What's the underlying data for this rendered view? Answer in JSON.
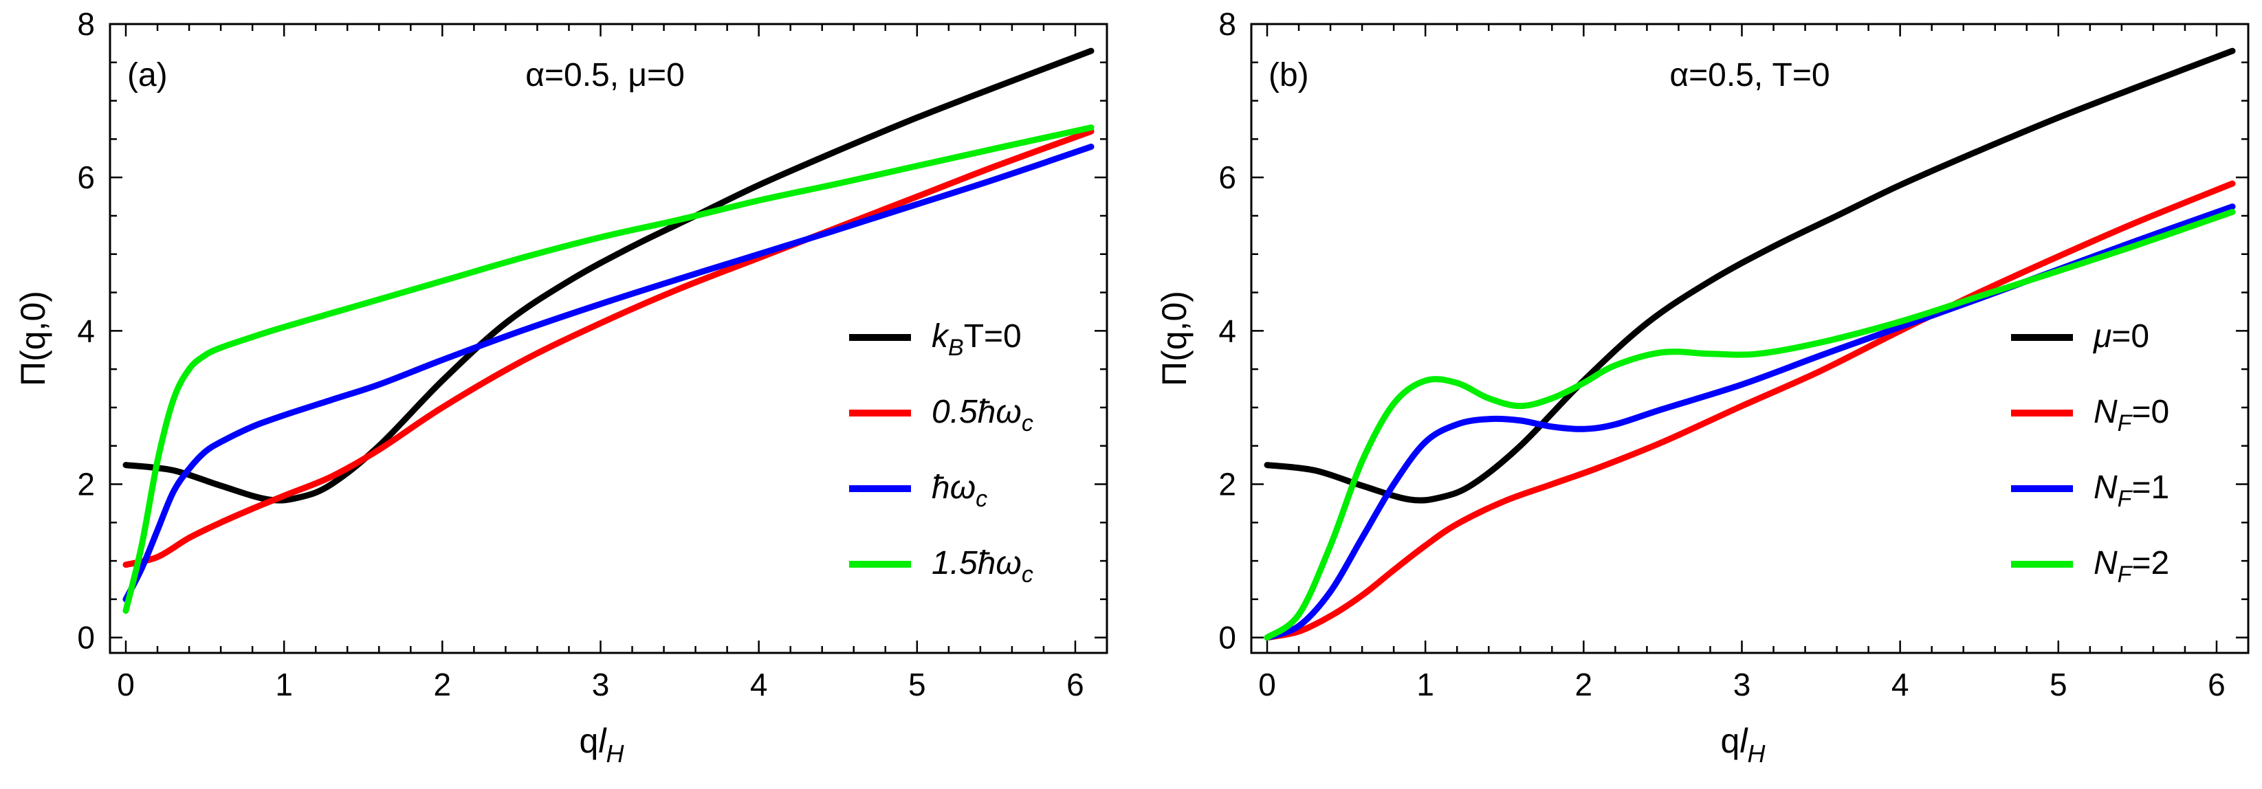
{
  "chart_data": [
    {
      "type": "line",
      "panel_label": "(a)",
      "annotation": "α=0.5, μ=0",
      "ylabel": "Π(q,0)",
      "xlabel": "ql_H",
      "xlabel_parts": {
        "main": "q",
        "sub_l": "l",
        "sub_H": "H"
      },
      "xlim": [
        -0.1,
        6.2
      ],
      "ylim": [
        -0.2,
        8
      ],
      "xticks": [
        "0",
        "1",
        "2",
        "3",
        "4",
        "5",
        "6"
      ],
      "yticks": [
        "0",
        "2",
        "4",
        "6",
        "8"
      ],
      "legend_position": "right",
      "series": [
        {
          "name": "k_BT=0",
          "legend": {
            "pre": "k",
            "sub": "B",
            "post": "T=0"
          },
          "color": "#000000",
          "x": [
            0,
            0.3,
            0.6,
            0.9,
            1.1,
            1.3,
            1.6,
            2.0,
            2.4,
            2.8,
            3.2,
            3.6,
            4.0,
            4.5,
            5.0,
            5.5,
            6.1
          ],
          "y": [
            2.25,
            2.18,
            1.98,
            1.8,
            1.83,
            2.0,
            2.5,
            3.35,
            4.1,
            4.65,
            5.1,
            5.5,
            5.9,
            6.35,
            6.78,
            7.18,
            7.65
          ]
        },
        {
          "name": "0.5ħω_c",
          "legend": {
            "pre": "0.5ħω",
            "sub": "c",
            "post": ""
          },
          "color": "#ff0000",
          "x": [
            0,
            0.2,
            0.4,
            0.6,
            0.8,
            1.0,
            1.3,
            1.6,
            2.0,
            2.5,
            3.0,
            3.5,
            4.0,
            4.5,
            5.0,
            5.5,
            6.1
          ],
          "y": [
            0.95,
            1.05,
            1.3,
            1.5,
            1.68,
            1.85,
            2.1,
            2.45,
            3.0,
            3.6,
            4.1,
            4.55,
            4.95,
            5.35,
            5.75,
            6.15,
            6.6
          ]
        },
        {
          "name": "ħω_c",
          "legend": {
            "pre": "ħω",
            "sub": "c",
            "post": ""
          },
          "color": "#0000ff",
          "x": [
            0,
            0.1,
            0.2,
            0.3,
            0.4,
            0.5,
            0.6,
            0.8,
            1.0,
            1.3,
            1.6,
            2.0,
            2.5,
            3.0,
            3.5,
            4.0,
            4.5,
            5.0,
            5.5,
            6.1
          ],
          "y": [
            0.5,
            0.9,
            1.4,
            1.9,
            2.2,
            2.42,
            2.55,
            2.75,
            2.9,
            3.1,
            3.3,
            3.62,
            4.0,
            4.35,
            4.68,
            5.0,
            5.32,
            5.65,
            5.98,
            6.4
          ]
        },
        {
          "name": "1.5ħω_c",
          "legend": {
            "pre": "1.5ħω",
            "sub": "c",
            "post": ""
          },
          "color": "#00ee00",
          "x": [
            0,
            0.1,
            0.2,
            0.3,
            0.4,
            0.5,
            0.6,
            0.8,
            1.0,
            1.5,
            2.0,
            2.5,
            3.0,
            3.5,
            4.0,
            4.5,
            5.0,
            5.5,
            6.1
          ],
          "y": [
            0.35,
            1.2,
            2.3,
            3.1,
            3.5,
            3.68,
            3.78,
            3.92,
            4.05,
            4.35,
            4.65,
            4.95,
            5.22,
            5.45,
            5.7,
            5.92,
            6.15,
            6.38,
            6.65
          ]
        }
      ]
    },
    {
      "type": "line",
      "panel_label": "(b)",
      "annotation": "α=0.5, T=0",
      "ylabel": "Π(q,0)",
      "xlabel": "ql_H",
      "xlabel_parts": {
        "main": "q",
        "sub_l": "l",
        "sub_H": "H"
      },
      "xlim": [
        -0.1,
        6.2
      ],
      "ylim": [
        -0.2,
        8
      ],
      "xticks": [
        "0",
        "1",
        "2",
        "3",
        "4",
        "5",
        "6"
      ],
      "yticks": [
        "0",
        "2",
        "4",
        "6",
        "8"
      ],
      "legend_position": "right",
      "series": [
        {
          "name": "μ=0",
          "legend": {
            "pre": "μ",
            "sub": "",
            "post": "=0"
          },
          "color": "#000000",
          "x": [
            0,
            0.3,
            0.6,
            0.9,
            1.1,
            1.3,
            1.6,
            2.0,
            2.4,
            2.8,
            3.2,
            3.6,
            4.0,
            4.5,
            5.0,
            5.5,
            6.1
          ],
          "y": [
            2.25,
            2.18,
            1.98,
            1.8,
            1.83,
            2.0,
            2.5,
            3.35,
            4.1,
            4.65,
            5.1,
            5.5,
            5.9,
            6.35,
            6.78,
            7.18,
            7.65
          ]
        },
        {
          "name": "N_F=0",
          "legend": {
            "pre": "N",
            "sub": "F",
            "post": "=0"
          },
          "color": "#ff0000",
          "x": [
            0,
            0.2,
            0.4,
            0.6,
            0.8,
            1.0,
            1.2,
            1.5,
            1.8,
            2.1,
            2.5,
            3.0,
            3.5,
            4.0,
            4.5,
            5.0,
            5.5,
            6.1
          ],
          "y": [
            0,
            0.08,
            0.28,
            0.55,
            0.88,
            1.2,
            1.48,
            1.78,
            2.0,
            2.22,
            2.55,
            3.02,
            3.48,
            4.0,
            4.5,
            4.97,
            5.42,
            5.92
          ]
        },
        {
          "name": "N_F=1",
          "legend": {
            "pre": "N",
            "sub": "F",
            "post": "=1"
          },
          "color": "#0000ff",
          "x": [
            0,
            0.2,
            0.4,
            0.6,
            0.8,
            1.0,
            1.2,
            1.4,
            1.6,
            1.8,
            2.0,
            2.2,
            2.5,
            3.0,
            3.5,
            4.0,
            4.5,
            5.0,
            5.5,
            6.1
          ],
          "y": [
            0,
            0.15,
            0.6,
            1.3,
            2.0,
            2.55,
            2.78,
            2.85,
            2.83,
            2.75,
            2.72,
            2.78,
            2.98,
            3.3,
            3.68,
            4.05,
            4.42,
            4.8,
            5.18,
            5.62
          ]
        },
        {
          "name": "N_F=2",
          "legend": {
            "pre": "N",
            "sub": "F",
            "post": "=2"
          },
          "color": "#00ee00",
          "x": [
            0,
            0.2,
            0.4,
            0.6,
            0.8,
            1.0,
            1.2,
            1.4,
            1.6,
            1.8,
            2.0,
            2.2,
            2.5,
            2.8,
            3.1,
            3.5,
            4.0,
            4.5,
            5.0,
            5.5,
            6.1
          ],
          "y": [
            0,
            0.3,
            1.2,
            2.3,
            3.05,
            3.35,
            3.32,
            3.12,
            3.02,
            3.12,
            3.32,
            3.55,
            3.72,
            3.7,
            3.7,
            3.85,
            4.12,
            4.45,
            4.78,
            5.12,
            5.55
          ]
        }
      ]
    }
  ]
}
